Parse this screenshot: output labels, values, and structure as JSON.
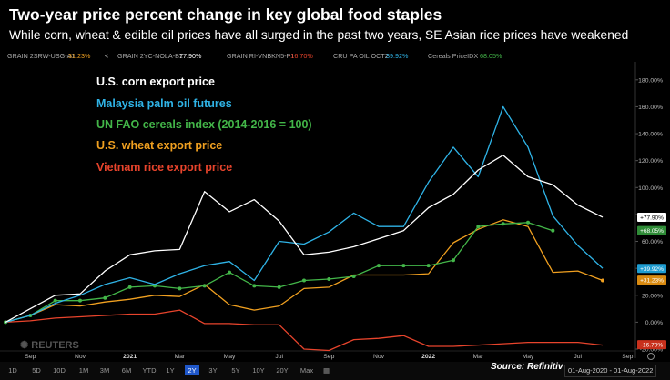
{
  "title": "Two-year price percent change in key global food staples",
  "subtitle": "While corn, wheat & edible oil prices have all surged in the past two years, SE Asian rice prices have weakened",
  "tickers": [
    {
      "label": "GRAIN 2SRW-USG-A1",
      "value": "31.23%",
      "color": "#f0a020"
    },
    {
      "label": "GRAIN 2YC-NOLA-B1",
      "value": "77.90%",
      "color": "#ffffff"
    },
    {
      "label": "GRAIN RI-VNBKN5-P1",
      "value": "-16.70%",
      "color": "#e8442c"
    },
    {
      "label": "CRU PA OIL OCT2",
      "value": "39.92%",
      "color": "#2fb3e6"
    },
    {
      "label": "Cereals PriceIDX",
      "value": "68.05%",
      "color": "#43b649"
    }
  ],
  "ticker_lead": "<",
  "watermark": "REUTERS",
  "source": "Source: Refinitiv",
  "nav": {
    "periods": [
      "1D",
      "5D",
      "10D",
      "1M",
      "3M",
      "6M",
      "YTD",
      "1Y",
      "2Y",
      "3Y",
      "5Y",
      "10Y",
      "20Y",
      "Max"
    ],
    "selected": "2Y",
    "date_range": "01-Aug-2020 - 01-Aug-2022"
  },
  "colors": {
    "corn": "#ffffff",
    "palm": "#2fb3e6",
    "cereals": "#43b649",
    "wheat": "#f0a020",
    "rice": "#e8442c"
  },
  "chart_data": {
    "type": "line",
    "title": "Two-year price percent change in key global food staples",
    "xlabel": "",
    "ylabel": "",
    "ylim": [
      -20,
      190
    ],
    "y_ticks": [
      -20,
      0,
      20,
      40,
      60,
      80,
      100,
      120,
      140,
      160,
      180
    ],
    "y_tick_labels": [
      "-20.00%",
      "0.00%",
      "20.00%",
      "40.00%",
      "60.00%",
      "80.00%",
      "100.00%",
      "120.00%",
      "140.00%",
      "160.00%",
      "180.00%"
    ],
    "x_ticks": [
      "Sep",
      "Nov",
      "2021",
      "Mar",
      "May",
      "Jul",
      "Sep",
      "Nov",
      "2022",
      "Mar",
      "May",
      "Jul",
      "Sep"
    ],
    "x_tick_bold": [
      "2021",
      "2022"
    ],
    "x": [
      "2020-08-01",
      "2020-09-01",
      "2020-10-01",
      "2020-11-01",
      "2020-12-01",
      "2021-01-01",
      "2021-02-01",
      "2021-03-01",
      "2021-04-01",
      "2021-05-01",
      "2021-06-01",
      "2021-07-01",
      "2021-08-01",
      "2021-09-01",
      "2021-10-01",
      "2021-11-01",
      "2021-12-01",
      "2022-01-01",
      "2022-02-01",
      "2022-03-01",
      "2022-04-01",
      "2022-05-01",
      "2022-06-01",
      "2022-07-01",
      "2022-08-01"
    ],
    "grid": false,
    "legend_position": "top-left",
    "series": [
      {
        "name": "U.S. corn export price",
        "key": "corn",
        "markers": false,
        "values": [
          0,
          10,
          20,
          21,
          38,
          50,
          53,
          54,
          97,
          82,
          91,
          75,
          50,
          52,
          56,
          62,
          68,
          85,
          95,
          113,
          124,
          108,
          102,
          87,
          78
        ],
        "end_label": "+77.90%"
      },
      {
        "name": "Malaysia palm oil futures",
        "key": "palm",
        "markers": false,
        "values": [
          0,
          5,
          14,
          20,
          28,
          33,
          28,
          36,
          42,
          45,
          31,
          60,
          58,
          67,
          81,
          71,
          71,
          104,
          130,
          108,
          160,
          130,
          79,
          57,
          40
        ],
        "end_label": "+39.92%"
      },
      {
        "name": "UN FAO cereals index (2014-2016 = 100)",
        "key": "cereals",
        "markers": true,
        "values": [
          0,
          5,
          16,
          16,
          18,
          26,
          27,
          25,
          27,
          37,
          27,
          26,
          31,
          32,
          34,
          42,
          42,
          42,
          46,
          71,
          73,
          74,
          68,
          null,
          null
        ],
        "end_label": "+68.05%"
      },
      {
        "name": "U.S. wheat export price",
        "key": "wheat",
        "markers": false,
        "values": [
          0,
          5,
          13,
          12,
          15,
          17,
          20,
          19,
          28,
          13,
          9,
          12,
          25,
          26,
          35,
          35,
          35,
          36,
          59,
          69,
          76,
          71,
          37,
          38,
          31
        ],
        "end_label": "+31.23%"
      },
      {
        "name": "Vietnam rice export price",
        "key": "rice",
        "markers": false,
        "values": [
          0,
          1,
          3,
          4,
          5,
          6,
          6,
          9,
          -1,
          -1,
          -2,
          -2,
          -20,
          -21,
          -13,
          -12,
          -10,
          -18,
          -18,
          -17,
          -16,
          -15,
          -15,
          -15,
          -17
        ],
        "end_label": "-16.70%"
      }
    ]
  }
}
